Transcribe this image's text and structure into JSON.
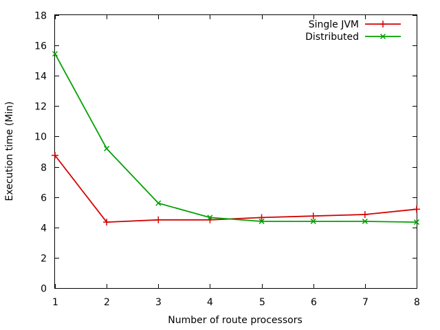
{
  "chart_data": {
    "type": "line",
    "title": "",
    "xlabel": "Number of route processors",
    "ylabel": "Execution time (Min)",
    "x": [
      1,
      2,
      3,
      4,
      5,
      6,
      7,
      8
    ],
    "xlim": [
      1,
      8
    ],
    "ylim": [
      0,
      18
    ],
    "xticks": [
      "1",
      "2",
      "3",
      "4",
      "5",
      "6",
      "7",
      "8"
    ],
    "yticks": [
      "0",
      "2",
      "4",
      "6",
      "8",
      "10",
      "12",
      "14",
      "16",
      "18"
    ],
    "grid": false,
    "legend_position": "top-right",
    "series": [
      {
        "name": "Single JVM",
        "color": "#d40000",
        "marker": "plus",
        "values": [
          8.75,
          4.35,
          4.5,
          4.5,
          4.65,
          4.75,
          4.85,
          5.2
        ]
      },
      {
        "name": "Distributed",
        "color": "#00a000",
        "marker": "cross",
        "values": [
          15.45,
          9.2,
          5.6,
          4.65,
          4.4,
          4.4,
          4.4,
          4.35
        ]
      }
    ]
  }
}
